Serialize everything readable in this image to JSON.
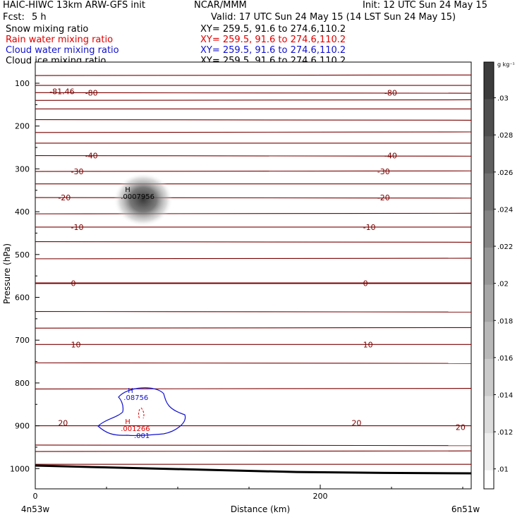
{
  "header": {
    "model": "HAIC-HIWC 13km ARW-GFS init",
    "org": "NCAR/MMM",
    "init": "Init: 12 UTC Sun 24 May 15",
    "fcst_label": "Fcst:",
    "fcst_value": "5 h",
    "valid": "Valid: 17 UTC Sun 24 May 15 (14 LST Sun 24 May 15)"
  },
  "fields": [
    {
      "name": "Snow mixing ratio",
      "xy": "XY= 259.5, 91.6 to 274.6,110.2",
      "color": "#000000"
    },
    {
      "name": "Rain water mixing ratio",
      "xy": "XY= 259.5, 91.6 to 274.6,110.2",
      "color": "#e00000"
    },
    {
      "name": "Cloud water mixing ratio",
      "xy": "XY= 259.5, 91.6 to 274.6,110.2",
      "color": "#1010d0"
    },
    {
      "name": "Cloud ice mixing ratio",
      "xy": "XY= 259.5, 91.6 to 274.6,110.2",
      "color": "#000000"
    }
  ],
  "chart_data": {
    "type": "contour",
    "xlabel": "Distance (km)",
    "ylabel": "Pressure (hPa)",
    "x_ticks": [
      0,
      200
    ],
    "x_range": [
      0,
      300
    ],
    "x_end_labels": [
      "4n53w",
      "6n51w"
    ],
    "y_ticks": [
      100,
      200,
      300,
      400,
      500,
      600,
      700,
      800,
      900,
      1000
    ],
    "y_range": [
      1050,
      50
    ],
    "isotherm_color": "#7a0000",
    "isotherms": [
      {
        "label": "-81.46",
        "p": 119,
        "label_x": 10
      },
      {
        "label": "-80",
        "p": 122,
        "label_x": 35
      },
      {
        "label": "-80",
        "p": 122,
        "label_x": 245
      },
      {
        "label": "-40",
        "p": 269,
        "label_x": 35
      },
      {
        "label": "-40",
        "p": 269,
        "label_x": 245
      },
      {
        "label": "-30",
        "p": 306,
        "label_x": 25
      },
      {
        "label": "-30",
        "p": 306,
        "label_x": 240
      },
      {
        "label": "-20",
        "p": 367,
        "label_x": 16
      },
      {
        "label": "-20",
        "p": 367,
        "label_x": 240
      },
      {
        "label": "-10",
        "p": 436,
        "label_x": 25
      },
      {
        "label": "-10",
        "p": 436,
        "label_x": 230
      },
      {
        "label": "0",
        "p": 567,
        "label_x": 25
      },
      {
        "label": "0",
        "p": 567,
        "label_x": 230
      },
      {
        "label": "10",
        "p": 710,
        "label_x": 25
      },
      {
        "label": "10",
        "p": 710,
        "label_x": 230
      },
      {
        "label": "20",
        "p": 893,
        "label_x": 16
      },
      {
        "label": "20",
        "p": 893,
        "label_x": 222
      },
      {
        "label": "20",
        "p": 903,
        "label_x": 295
      }
    ],
    "iso_levels": [
      82,
      105,
      122,
      140,
      160,
      185,
      215,
      240,
      269,
      306,
      335,
      367,
      405,
      436,
      470,
      510,
      567,
      633,
      672,
      710,
      753,
      814,
      900,
      945,
      960,
      990
    ],
    "surface_pressure": [
      993,
      998,
      1003,
      1008,
      1010,
      1011
    ],
    "maxima": [
      {
        "label": "H",
        "value": ".0007956",
        "x": 63,
        "p": 370,
        "color": "#000000"
      },
      {
        "label": "H",
        "value": ".08756",
        "x": 65,
        "p": 840,
        "color": "#1010d0"
      },
      {
        "label": "H",
        "value": ".001266",
        "x": 63,
        "p": 912,
        "color": "#e00000"
      }
    ],
    "cloud_water_label": ".001",
    "colorbar": {
      "unit": "g kg⁻¹",
      "ticks": [
        ".03",
        ".028",
        ".026",
        ".024",
        ".022",
        ".02",
        ".018",
        ".016",
        ".014",
        ".012",
        ".01"
      ]
    }
  }
}
